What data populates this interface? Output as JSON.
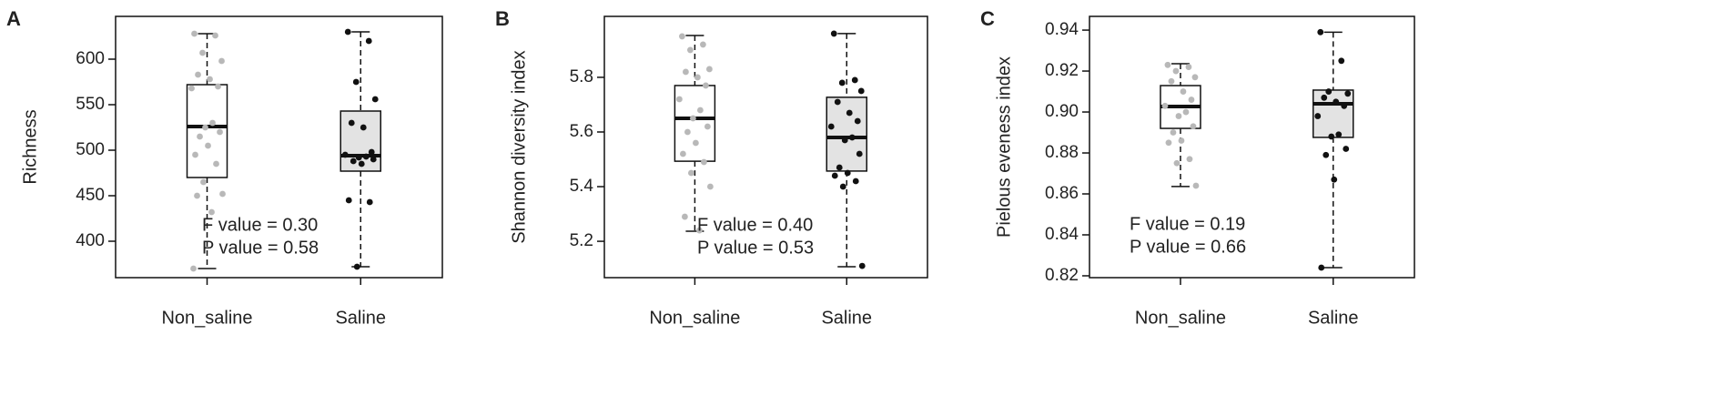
{
  "chart_data": [
    {
      "type": "box",
      "panel_label": "A",
      "ylabel": "Richness",
      "categories": [
        "Non_saline",
        "Saline"
      ],
      "ylim": [
        360,
        647
      ],
      "yticks": [
        400,
        450,
        500,
        550,
        600
      ],
      "annotations": [
        "F value = 0.30",
        "P value = 0.58"
      ],
      "boxes": [
        {
          "whisker_low": 370,
          "q1": 470,
          "median": 526,
          "q3": 572,
          "whisker_high": 628,
          "fill": "#ffffff",
          "point_color": "#b8b8b8",
          "points": [
            628,
            626,
            607,
            598,
            583,
            578,
            570,
            568,
            530,
            525,
            520,
            515,
            505,
            495,
            485,
            465,
            452,
            450,
            432,
            370
          ]
        },
        {
          "whisker_low": 372,
          "q1": 477,
          "median": 494,
          "q3": 543,
          "whisker_high": 630,
          "fill": "#e3e3e3",
          "point_color": "#111111",
          "points": [
            630,
            620,
            575,
            556,
            530,
            525,
            498,
            495,
            493,
            492,
            490,
            488,
            485,
            445,
            443,
            372
          ]
        }
      ]
    },
    {
      "type": "box",
      "panel_label": "B",
      "ylabel": "Shannon diversity index",
      "categories": [
        "Non_saline",
        "Saline"
      ],
      "ylim": [
        5.067,
        6.023
      ],
      "yticks": [
        5.2,
        5.4,
        5.6,
        5.8
      ],
      "annotations": [
        "F value = 0.40",
        "P value = 0.53"
      ],
      "boxes": [
        {
          "whisker_low": 5.237,
          "q1": 5.493,
          "median": 5.65,
          "q3": 5.77,
          "whisker_high": 5.953,
          "fill": "#ffffff",
          "point_color": "#b8b8b8",
          "points": [
            5.95,
            5.92,
            5.9,
            5.83,
            5.82,
            5.8,
            5.77,
            5.72,
            5.68,
            5.65,
            5.62,
            5.6,
            5.56,
            5.52,
            5.49,
            5.45,
            5.4,
            5.29,
            5.24
          ]
        },
        {
          "whisker_low": 5.107,
          "q1": 5.457,
          "median": 5.58,
          "q3": 5.727,
          "whisker_high": 5.96,
          "fill": "#e3e3e3",
          "point_color": "#111111",
          "points": [
            5.96,
            5.79,
            5.78,
            5.75,
            5.71,
            5.67,
            5.64,
            5.62,
            5.58,
            5.57,
            5.52,
            5.47,
            5.45,
            5.44,
            5.42,
            5.4,
            5.11
          ]
        }
      ]
    },
    {
      "type": "box",
      "panel_label": "C",
      "ylabel": "Pielous eveness index",
      "categories": [
        "Non_saline",
        "Saline"
      ],
      "ylim": [
        0.8191,
        0.9467
      ],
      "yticks": [
        0.82,
        0.84,
        0.86,
        0.88,
        {
          "value": 0.9,
          "label": "0.90"
        },
        0.92,
        0.94
      ],
      "annotations": [
        "F value = 0.19",
        "P value  = 0.66"
      ],
      "boxes": [
        {
          "whisker_low": 0.8636,
          "q1": 0.892,
          "median": 0.9027,
          "q3": 0.9129,
          "whisker_high": 0.9236,
          "fill": "#ffffff",
          "point_color": "#b8b8b8",
          "points": [
            0.923,
            0.922,
            0.92,
            0.917,
            0.915,
            0.91,
            0.906,
            0.903,
            0.9,
            0.898,
            0.893,
            0.89,
            0.886,
            0.885,
            0.877,
            0.875,
            0.864
          ]
        },
        {
          "whisker_low": 0.824,
          "q1": 0.8876,
          "median": 0.904,
          "q3": 0.9107,
          "whisker_high": 0.939,
          "fill": "#e3e3e3",
          "point_color": "#111111",
          "points": [
            0.939,
            0.925,
            0.91,
            0.909,
            0.907,
            0.905,
            0.903,
            0.898,
            0.889,
            0.888,
            0.882,
            0.879,
            0.867,
            0.824
          ]
        }
      ]
    }
  ]
}
